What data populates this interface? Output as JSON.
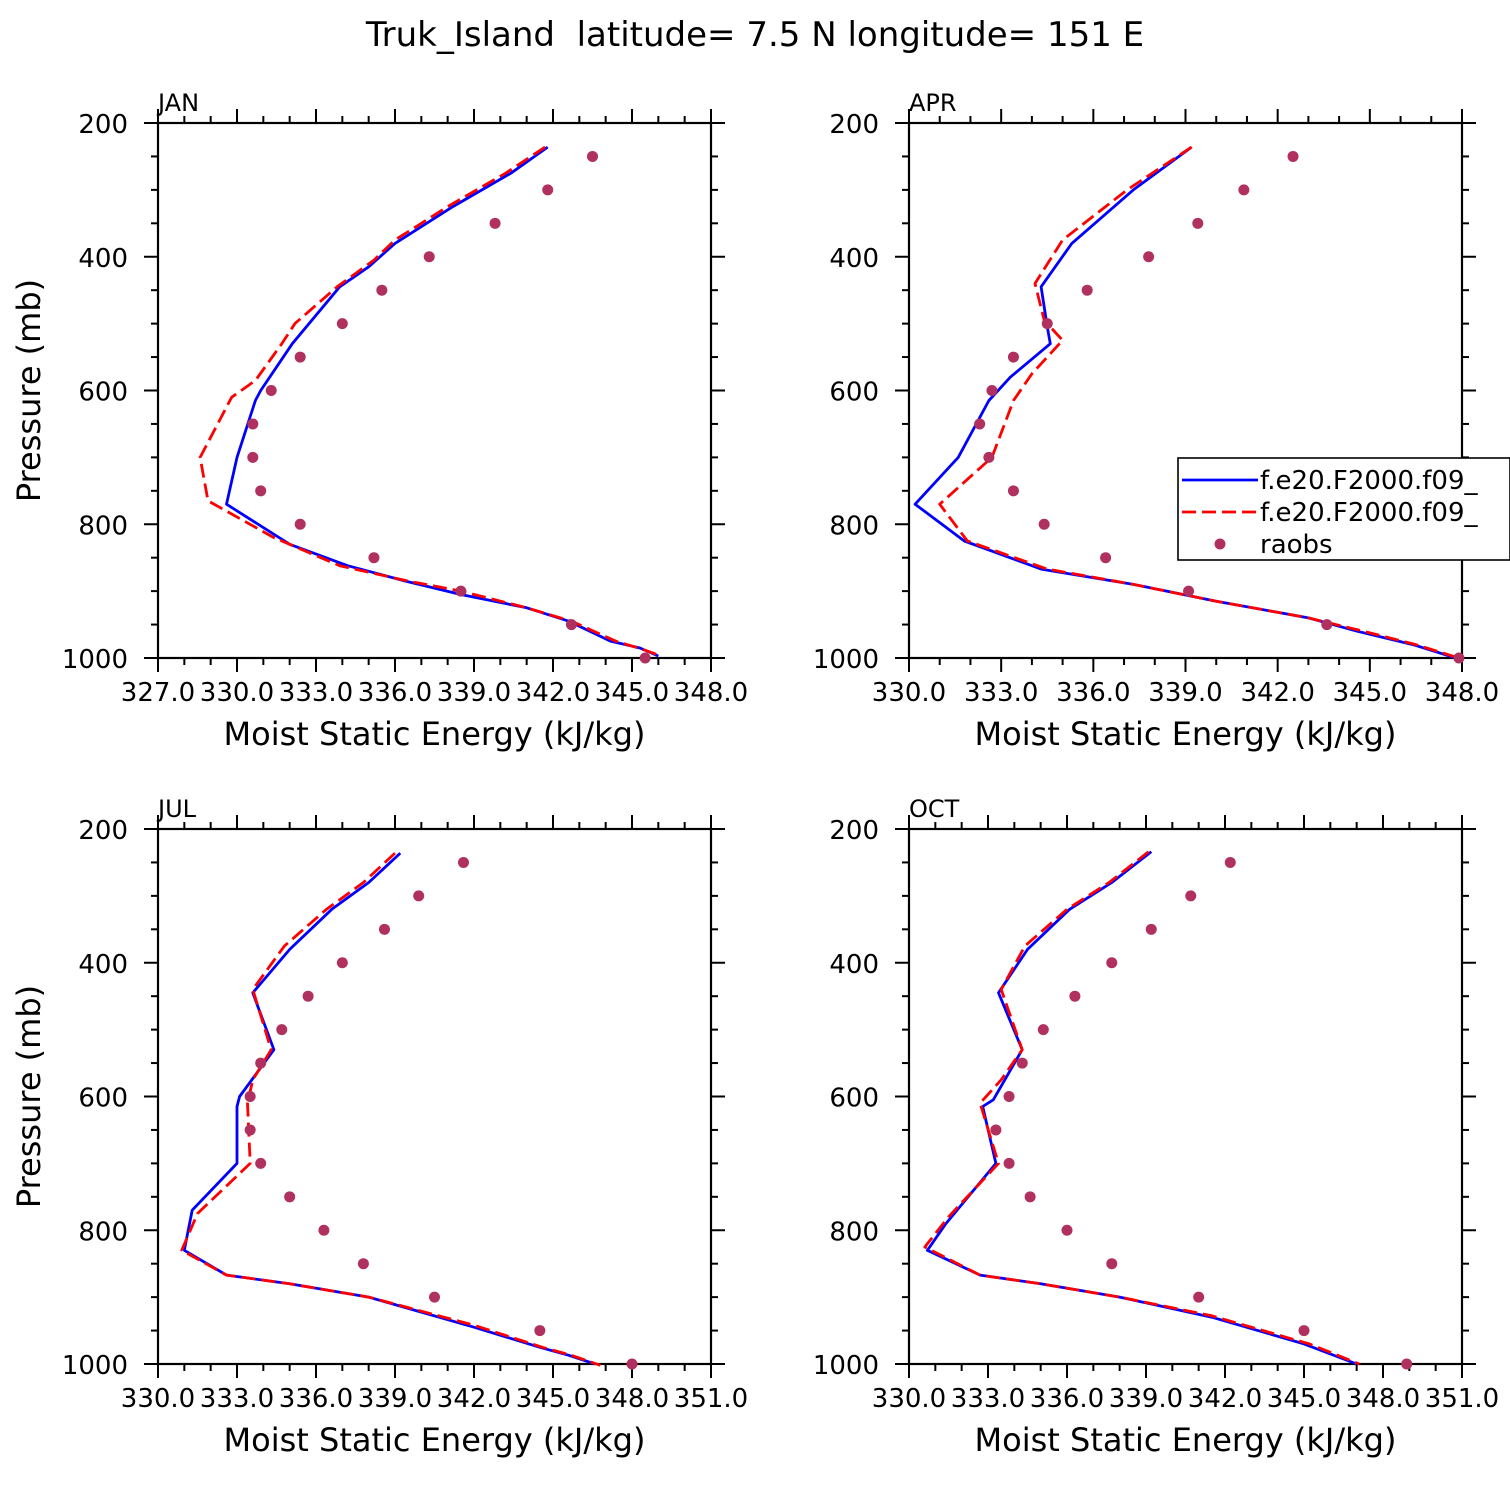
{
  "figure_title": "Truk_Island  latitude= 7.5 N longitude= 151 E",
  "chart_data": [
    {
      "type": "line",
      "panel": "JAN",
      "xlabel": "Moist Static Energy (kJ/kg)",
      "ylabel": "Pressure (mb)",
      "xlim": [
        327.0,
        348.0
      ],
      "ylim": [
        1000,
        200
      ],
      "x_ticks": [
        327.0,
        330.0,
        333.0,
        336.0,
        339.0,
        342.0,
        345.0,
        348.0
      ],
      "x_tick_labels": [
        "327.0",
        "330.0",
        "333.0",
        "336.0",
        "339.0",
        "342.0",
        "345.0",
        "348.0"
      ],
      "y_ticks": [
        200,
        400,
        600,
        800,
        1000
      ],
      "y_tick_labels": [
        "200",
        "400",
        "600",
        "800",
        "1000"
      ],
      "legend": null,
      "series": [
        {
          "name": "f.e20.F2000.f09_",
          "style": "solid",
          "color": "#0000ff",
          "points": [
            [
              341.8,
              236
            ],
            [
              340.4,
              275
            ],
            [
              338.2,
              325
            ],
            [
              336.0,
              380
            ],
            [
              335.0,
              415
            ],
            [
              333.9,
              445
            ],
            [
              332.1,
              530
            ],
            [
              330.9,
              600
            ],
            [
              330.7,
              615
            ],
            [
              330.0,
              700
            ],
            [
              329.6,
              770
            ],
            [
              332.0,
              830
            ],
            [
              334.2,
              862
            ],
            [
              336.4,
              885
            ],
            [
              338.5,
              905
            ],
            [
              341.0,
              925
            ],
            [
              342.6,
              945
            ],
            [
              344.2,
              975
            ],
            [
              345.3,
              985
            ],
            [
              346.0,
              997
            ]
          ]
        },
        {
          "name": "f.e20.F2000.f09_",
          "style": "dashed",
          "color": "#ff0000",
          "points": [
            [
              341.7,
              236
            ],
            [
              340.2,
              275
            ],
            [
              338.0,
              325
            ],
            [
              336.0,
              375
            ],
            [
              335.2,
              405
            ],
            [
              333.8,
              445
            ],
            [
              332.2,
              500
            ],
            [
              331.7,
              530
            ],
            [
              330.7,
              585
            ],
            [
              329.8,
              610
            ],
            [
              328.6,
              700
            ],
            [
              328.9,
              765
            ],
            [
              331.4,
              820
            ],
            [
              333.9,
              862
            ],
            [
              336.5,
              885
            ],
            [
              338.5,
              900
            ],
            [
              341.0,
              925
            ],
            [
              342.7,
              945
            ],
            [
              344.4,
              975
            ],
            [
              345.4,
              987
            ],
            [
              346.1,
              997
            ]
          ]
        },
        {
          "name": "raobs",
          "style": "dots",
          "color": "#b03060",
          "points": [
            [
              343.5,
              250
            ],
            [
              341.8,
              300
            ],
            [
              339.8,
              350
            ],
            [
              337.3,
              400
            ],
            [
              335.5,
              450
            ],
            [
              334.0,
              500
            ],
            [
              332.4,
              550
            ],
            [
              331.3,
              600
            ],
            [
              330.6,
              650
            ],
            [
              330.6,
              700
            ],
            [
              330.9,
              750
            ],
            [
              332.4,
              800
            ],
            [
              335.2,
              850
            ],
            [
              338.5,
              900
            ],
            [
              342.7,
              950
            ],
            [
              345.5,
              1000
            ]
          ]
        }
      ]
    },
    {
      "type": "line",
      "panel": "APR",
      "xlabel": "Moist Static Energy (kJ/kg)",
      "ylabel": "",
      "xlim": [
        330.0,
        348.0
      ],
      "ylim": [
        1000,
        200
      ],
      "x_ticks": [
        330.0,
        333.0,
        336.0,
        339.0,
        342.0,
        345.0,
        348.0
      ],
      "x_tick_labels": [
        "330.0",
        "333.0",
        "336.0",
        "339.0",
        "342.0",
        "345.0",
        "348.0"
      ],
      "y_ticks": [
        200,
        400,
        600,
        800,
        1000
      ],
      "y_tick_labels": [
        "200",
        "400",
        "600",
        "800",
        "1000"
      ],
      "legend": {
        "location": "right",
        "entries": [
          "f.e20.F2000.f09_",
          "f.e20.F2000.f09_",
          "raobs"
        ]
      },
      "series": [
        {
          "name": "f.e20.F2000.f09_",
          "style": "solid",
          "color": "#0000ff",
          "points": [
            [
              339.2,
              236
            ],
            [
              337.3,
              300
            ],
            [
              335.3,
              380
            ],
            [
              334.3,
              445
            ],
            [
              334.5,
              505
            ],
            [
              334.6,
              530
            ],
            [
              333.3,
              580
            ],
            [
              332.6,
              615
            ],
            [
              331.6,
              700
            ],
            [
              330.2,
              770
            ],
            [
              331.8,
              825
            ],
            [
              334.3,
              867
            ],
            [
              337.3,
              890
            ],
            [
              340.0,
              915
            ],
            [
              343.0,
              940
            ],
            [
              344.6,
              960
            ],
            [
              346.4,
              980
            ],
            [
              347.8,
              1000
            ]
          ]
        },
        {
          "name": "f.e20.F2000.f09_",
          "style": "dashed",
          "color": "#ff0000",
          "points": [
            [
              339.2,
              236
            ],
            [
              337.1,
              300
            ],
            [
              335.0,
              375
            ],
            [
              334.1,
              440
            ],
            [
              334.4,
              495
            ],
            [
              335.0,
              525
            ],
            [
              334.0,
              575
            ],
            [
              333.4,
              615
            ],
            [
              332.7,
              700
            ],
            [
              331.0,
              770
            ],
            [
              331.9,
              825
            ],
            [
              334.5,
              867
            ],
            [
              337.3,
              890
            ],
            [
              340.0,
              915
            ],
            [
              343.0,
              940
            ],
            [
              344.8,
              960
            ],
            [
              346.5,
              980
            ],
            [
              347.9,
              1000
            ]
          ]
        },
        {
          "name": "raobs",
          "style": "dots",
          "color": "#b03060",
          "points": [
            [
              342.5,
              250
            ],
            [
              340.9,
              300
            ],
            [
              339.4,
              350
            ],
            [
              337.8,
              400
            ],
            [
              335.8,
              450
            ],
            [
              334.5,
              500
            ],
            [
              333.4,
              550
            ],
            [
              332.7,
              600
            ],
            [
              332.3,
              650
            ],
            [
              332.6,
              700
            ],
            [
              333.4,
              750
            ],
            [
              334.4,
              800
            ],
            [
              336.4,
              850
            ],
            [
              339.1,
              900
            ],
            [
              343.6,
              950
            ],
            [
              347.9,
              1000
            ]
          ]
        }
      ]
    },
    {
      "type": "line",
      "panel": "JUL",
      "xlabel": "Moist Static Energy (kJ/kg)",
      "ylabel": "Pressure (mb)",
      "xlim": [
        330.0,
        351.0
      ],
      "ylim": [
        1000,
        200
      ],
      "x_ticks": [
        330.0,
        333.0,
        336.0,
        339.0,
        342.0,
        345.0,
        348.0,
        351.0
      ],
      "x_tick_labels": [
        "330.0",
        "333.0",
        "336.0",
        "339.0",
        "342.0",
        "345.0",
        "348.0",
        "351.0"
      ],
      "y_ticks": [
        200,
        400,
        600,
        800,
        1000
      ],
      "y_tick_labels": [
        "200",
        "400",
        "600",
        "800",
        "1000"
      ],
      "legend": null,
      "series": [
        {
          "name": "f.e20.F2000.f09_",
          "style": "solid",
          "color": "#0000ff",
          "points": [
            [
              339.2,
              236
            ],
            [
              338.0,
              280
            ],
            [
              336.6,
              320
            ],
            [
              335.0,
              380
            ],
            [
              333.6,
              445
            ],
            [
              334.4,
              530
            ],
            [
              333.1,
              600
            ],
            [
              333.0,
              615
            ],
            [
              333.0,
              700
            ],
            [
              331.3,
              770
            ],
            [
              331.0,
              830
            ],
            [
              332.6,
              867
            ],
            [
              335.0,
              880
            ],
            [
              338.0,
              900
            ],
            [
              342.0,
              945
            ],
            [
              344.5,
              975
            ],
            [
              345.6,
              987
            ],
            [
              346.6,
              1000
            ]
          ]
        },
        {
          "name": "f.e20.F2000.f09_",
          "style": "dashed",
          "color": "#ff0000",
          "points": [
            [
              339.0,
              236
            ],
            [
              337.8,
              280
            ],
            [
              336.4,
              320
            ],
            [
              334.8,
              375
            ],
            [
              333.6,
              440
            ],
            [
              334.3,
              530
            ],
            [
              333.6,
              575
            ],
            [
              333.4,
              610
            ],
            [
              333.5,
              700
            ],
            [
              331.5,
              775
            ],
            [
              330.9,
              830
            ],
            [
              332.6,
              867
            ],
            [
              335.0,
              880
            ],
            [
              338.0,
              900
            ],
            [
              342.0,
              942
            ],
            [
              344.6,
              975
            ],
            [
              345.7,
              987
            ],
            [
              346.8,
              1002
            ]
          ]
        },
        {
          "name": "raobs",
          "style": "dots",
          "color": "#b03060",
          "points": [
            [
              341.6,
              250
            ],
            [
              339.9,
              300
            ],
            [
              338.6,
              350
            ],
            [
              337.0,
              400
            ],
            [
              335.7,
              450
            ],
            [
              334.7,
              500
            ],
            [
              333.9,
              550
            ],
            [
              333.5,
              600
            ],
            [
              333.5,
              650
            ],
            [
              333.9,
              700
            ],
            [
              335.0,
              750
            ],
            [
              336.3,
              800
            ],
            [
              337.8,
              850
            ],
            [
              340.5,
              900
            ],
            [
              344.5,
              950
            ],
            [
              348.0,
              1000
            ]
          ]
        }
      ]
    },
    {
      "type": "line",
      "panel": "OCT",
      "xlabel": "Moist Static Energy (kJ/kg)",
      "ylabel": "",
      "xlim": [
        330.0,
        351.0
      ],
      "ylim": [
        1000,
        200
      ],
      "x_ticks": [
        330.0,
        333.0,
        336.0,
        339.0,
        342.0,
        345.0,
        348.0,
        351.0
      ],
      "x_tick_labels": [
        "330.0",
        "333.0",
        "336.0",
        "339.0",
        "342.0",
        "345.0",
        "348.0",
        "351.0"
      ],
      "y_ticks": [
        200,
        400,
        600,
        800,
        1000
      ],
      "y_tick_labels": [
        "200",
        "400",
        "600",
        "800",
        "1000"
      ],
      "legend": null,
      "series": [
        {
          "name": "f.e20.F2000.f09_",
          "style": "solid",
          "color": "#0000ff",
          "points": [
            [
              339.2,
              234
            ],
            [
              337.7,
              280
            ],
            [
              336.1,
              320
            ],
            [
              334.5,
              380
            ],
            [
              333.4,
              445
            ],
            [
              334.3,
              530
            ],
            [
              333.2,
              605
            ],
            [
              332.8,
              615
            ],
            [
              333.3,
              700
            ],
            [
              331.4,
              790
            ],
            [
              330.7,
              830
            ],
            [
              332.7,
              867
            ],
            [
              335.0,
              880
            ],
            [
              338.0,
              900
            ],
            [
              341.5,
              930
            ],
            [
              345.0,
              970
            ],
            [
              347.0,
              1000
            ]
          ]
        },
        {
          "name": "f.e20.F2000.f09_",
          "style": "dashed",
          "color": "#ff0000",
          "points": [
            [
              339.1,
              234
            ],
            [
              337.6,
              280
            ],
            [
              336.0,
              320
            ],
            [
              334.4,
              375
            ],
            [
              333.5,
              440
            ],
            [
              334.3,
              530
            ],
            [
              333.5,
              575
            ],
            [
              332.7,
              610
            ],
            [
              333.4,
              700
            ],
            [
              331.5,
              780
            ],
            [
              330.6,
              825
            ],
            [
              332.7,
              867
            ],
            [
              335.0,
              880
            ],
            [
              338.0,
              900
            ],
            [
              341.5,
              928
            ],
            [
              345.2,
              970
            ],
            [
              347.1,
              1000
            ]
          ]
        },
        {
          "name": "raobs",
          "style": "dots",
          "color": "#b03060",
          "points": [
            [
              342.2,
              250
            ],
            [
              340.7,
              300
            ],
            [
              339.2,
              350
            ],
            [
              337.7,
              400
            ],
            [
              336.3,
              450
            ],
            [
              335.1,
              500
            ],
            [
              334.3,
              550
            ],
            [
              333.8,
              600
            ],
            [
              333.3,
              650
            ],
            [
              333.8,
              700
            ],
            [
              334.6,
              750
            ],
            [
              336.0,
              800
            ],
            [
              337.7,
              850
            ],
            [
              341.0,
              900
            ],
            [
              345.0,
              950
            ],
            [
              348.9,
              1000
            ]
          ]
        }
      ]
    }
  ]
}
